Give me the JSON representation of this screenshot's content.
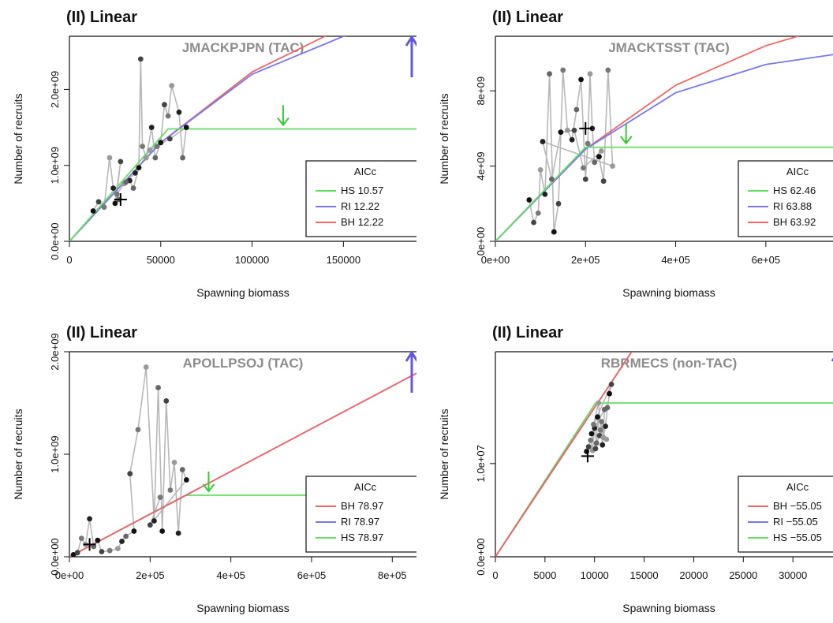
{
  "chart_data": [
    {
      "type": "line",
      "title": "(II) Linear",
      "stock_label": "JMACKPJPN (TAC)",
      "xlabel": "Spawning biomass",
      "ylabel": "Number of recruits",
      "xlim": [
        0,
        190000
      ],
      "ylim": [
        0,
        2700000000
      ],
      "xticks": [
        0,
        50000,
        100000,
        150000
      ],
      "xtick_labels": [
        "0",
        "50000",
        "100000",
        "150000"
      ],
      "yticks": [
        0,
        1000000000,
        2000000000
      ],
      "ytick_labels": [
        "0.0e+00",
        "1.0e+09",
        "2.0e+09"
      ],
      "legend": {
        "title": "AICc",
        "position": "bottom-right",
        "entries": [
          {
            "label": "HS 10.57",
            "color": "#66dd66"
          },
          {
            "label": "RI 12.22",
            "color": "#7777ee"
          },
          {
            "label": "BH 12.22",
            "color": "#ee6666"
          }
        ]
      },
      "series": [
        {
          "name": "HS",
          "color": "#66dd66",
          "x": [
            0,
            54000,
            190000
          ],
          "y": [
            0,
            1480000000,
            1480000000
          ]
        },
        {
          "name": "RI",
          "color": "#7777ee",
          "x": [
            0,
            50000,
            100000,
            150000,
            190000
          ],
          "y": [
            0,
            1300000000,
            2200000000,
            2700000000,
            2900000000
          ]
        },
        {
          "name": "BH",
          "color": "#ee6666",
          "x": [
            0,
            50000,
            100000,
            150000,
            190000
          ],
          "y": [
            0,
            1300000000,
            2230000000,
            2820000000,
            3100000000
          ]
        }
      ],
      "observations": {
        "x": [
          13000,
          16000,
          19000,
          22000,
          24000,
          27000,
          25000,
          28000,
          26000,
          30000,
          33000,
          35000,
          38000,
          39000,
          40000,
          42000,
          45000,
          47000,
          50000,
          52000,
          54000,
          56000,
          60000,
          62000,
          64000,
          55000,
          48000,
          44000,
          36000,
          31000
        ],
        "y": [
          400000000,
          520000000,
          450000000,
          1100000000,
          700000000,
          550000000,
          500000000,
          1050000000,
          620000000,
          760000000,
          800000000,
          700000000,
          970000000,
          2400000000,
          1250000000,
          1100000000,
          1500000000,
          1100000000,
          1300000000,
          1800000000,
          1650000000,
          2050000000,
          1700000000,
          1100000000,
          1500000000,
          1350000000,
          1250000000,
          1200000000,
          900000000,
          780000000
        ]
      },
      "final_point": {
        "x": 28000,
        "y": 550000000
      },
      "green_arrow_x": 117000,
      "blue_arrow": true
    },
    {
      "type": "line",
      "title": "(II) Linear",
      "stock_label": "JMACKTSST (TAC)",
      "xlabel": "Spawning biomass",
      "ylabel": "Number of recruits",
      "xlim": [
        0,
        770000
      ],
      "ylim": [
        0,
        10900000000
      ],
      "xticks": [
        0,
        200000,
        400000,
        600000
      ],
      "xtick_labels": [
        "0e+00",
        "2e+05",
        "4e+05",
        "6e+05"
      ],
      "yticks": [
        0,
        4000000000,
        8000000000
      ],
      "ytick_labels": [
        "0e+00",
        "4e+09",
        "8e+09"
      ],
      "legend": {
        "title": "AICc",
        "position": "bottom-right",
        "entries": [
          {
            "label": "HS 62.46",
            "color": "#66dd66"
          },
          {
            "label": "RI 63.88",
            "color": "#7777ee"
          },
          {
            "label": "BH 63.92",
            "color": "#ee6666"
          }
        ]
      },
      "series": [
        {
          "name": "HS",
          "color": "#66dd66",
          "x": [
            0,
            200000,
            770000
          ],
          "y": [
            0,
            5000000000,
            5000000000
          ]
        },
        {
          "name": "RI",
          "color": "#7777ee",
          "x": [
            0,
            200000,
            400000,
            600000,
            770000
          ],
          "y": [
            0,
            4900000000,
            7900000000,
            9400000000,
            10000000000
          ]
        },
        {
          "name": "BH",
          "color": "#ee6666",
          "x": [
            0,
            200000,
            400000,
            600000,
            770000
          ],
          "y": [
            0,
            4900000000,
            8300000000,
            10400000000,
            11600000000
          ]
        }
      ],
      "observations": {
        "x": [
          75000,
          85000,
          95000,
          100000,
          110000,
          120000,
          130000,
          140000,
          150000,
          160000,
          170000,
          180000,
          190000,
          200000,
          205000,
          210000,
          215000,
          220000,
          230000,
          240000,
          250000,
          260000,
          105000,
          125000,
          145000,
          175000,
          195000,
          235000
        ],
        "y": [
          2200000000,
          1000000000,
          1500000000,
          3800000000,
          2500000000,
          8900000000,
          500000000,
          2000000000,
          9100000000,
          5900000000,
          5400000000,
          7000000000,
          8600000000,
          3300000000,
          5200000000,
          8900000000,
          6000000000,
          4200000000,
          4500000000,
          3200000000,
          9100000000,
          4000000000,
          5300000000,
          3300000000,
          5800000000,
          5900000000,
          3900000000,
          4800000000
        ]
      },
      "final_point": {
        "x": 200000,
        "y": 6000000000
      },
      "green_arrow_x": 290000,
      "blue_arrow": false
    },
    {
      "type": "line",
      "title": "(II) Linear",
      "stock_label": "APOLLPSOJ (TAC)",
      "xlabel": "Spawning biomass",
      "ylabel": "Number of recruits",
      "xlim": [
        0,
        860000
      ],
      "ylim": [
        0,
        2000000000
      ],
      "xticks": [
        0,
        200000,
        400000,
        600000,
        800000
      ],
      "xtick_labels": [
        "0e+00",
        "2e+05",
        "4e+05",
        "6e+05",
        "8e+05"
      ],
      "yticks": [
        0,
        1000000000,
        2000000000
      ],
      "ytick_labels": [
        "0.0e+00",
        "1.0e+09",
        "2.0e+09"
      ],
      "legend": {
        "title": "AICc",
        "position": "bottom-right",
        "entries": [
          {
            "label": "BH 78.97",
            "color": "#ee6666"
          },
          {
            "label": "RI 78.97",
            "color": "#7777ee"
          },
          {
            "label": "HS 78.97",
            "color": "#66dd66"
          }
        ]
      },
      "series": [
        {
          "name": "BH",
          "color": "#ee6666",
          "x": [
            0,
            860000
          ],
          "y": [
            0,
            1790000000
          ]
        },
        {
          "name": "RI",
          "color": "#7777ee",
          "x": [
            0,
            860000
          ],
          "y": [
            0,
            1790000000
          ]
        },
        {
          "name": "HS",
          "color": "#66dd66",
          "x": [
            0,
            290000,
            590000
          ],
          "y": [
            0,
            600000000,
            600000000
          ]
        }
      ],
      "observations": {
        "x": [
          10000,
          20000,
          30000,
          40000,
          50000,
          60000,
          70000,
          80000,
          100000,
          120000,
          130000,
          140000,
          160000,
          150000,
          170000,
          190000,
          210000,
          220000,
          230000,
          240000,
          250000,
          260000,
          270000,
          280000,
          290000,
          200000,
          225000
        ],
        "y": [
          20000000,
          40000000,
          180000000,
          120000000,
          370000000,
          100000000,
          160000000,
          50000000,
          60000000,
          80000000,
          150000000,
          200000000,
          250000000,
          810000000,
          1240000000,
          1850000000,
          350000000,
          1650000000,
          250000000,
          1520000000,
          650000000,
          920000000,
          230000000,
          850000000,
          750000000,
          310000000,
          580000000
        ]
      },
      "final_point": {
        "x": 50000,
        "y": 120000000
      },
      "green_arrow_x": 345000,
      "blue_arrow": true
    },
    {
      "type": "line",
      "title": "(II) Linear",
      "stock_label": "RBRMECS (non-TAC)",
      "xlabel": "Spawning biomass",
      "ylabel": "Number of recruits",
      "xlim": [
        0,
        35000
      ],
      "ylim": [
        0,
        22000000
      ],
      "xticks": [
        0,
        5000,
        10000,
        15000,
        20000,
        25000,
        30000
      ],
      "xtick_labels": [
        "0",
        "5000",
        "10000",
        "15000",
        "20000",
        "25000",
        "30000"
      ],
      "yticks": [
        0,
        10000000
      ],
      "ytick_labels": [
        "0.0e+00",
        "1.0e+07"
      ],
      "legend": {
        "title": "AICc",
        "position": "bottom-right",
        "entries": [
          {
            "label": "BH −55.05",
            "color": "#ee6666"
          },
          {
            "label": "RI −55.05",
            "color": "#7777ee"
          },
          {
            "label": "HS −55.05",
            "color": "#66dd66"
          }
        ]
      },
      "series": [
        {
          "name": "BH",
          "color": "#ee6666",
          "x": [
            0,
            15000
          ],
          "y": [
            0,
            24000000
          ]
        },
        {
          "name": "RI",
          "color": "#7777ee",
          "x": [
            0,
            15000
          ],
          "y": [
            0,
            24000000
          ]
        },
        {
          "name": "HS",
          "color": "#66dd66",
          "x": [
            0,
            10100,
            35000
          ],
          "y": [
            0,
            16500000,
            16500000
          ]
        }
      ],
      "observations": {
        "x": [
          9200,
          9400,
          9600,
          9800,
          10000,
          10200,
          10300,
          10500,
          10700,
          10900,
          11100,
          11300,
          11500,
          11700,
          9900,
          10400,
          10800,
          11000,
          9700,
          10100,
          10600,
          11200
        ],
        "y": [
          11300000,
          11800000,
          12500000,
          11400000,
          13800000,
          12200000,
          15000000,
          13000000,
          14500000,
          12800000,
          14000000,
          16000000,
          17500000,
          18500000,
          14200000,
          16500000,
          12000000,
          15800000,
          13200000,
          11600000,
          13600000,
          12600000
        ]
      },
      "final_point": {
        "x": 9300,
        "y": 10800000
      },
      "green_arrow_x": null,
      "blue_arrow": true
    }
  ]
}
